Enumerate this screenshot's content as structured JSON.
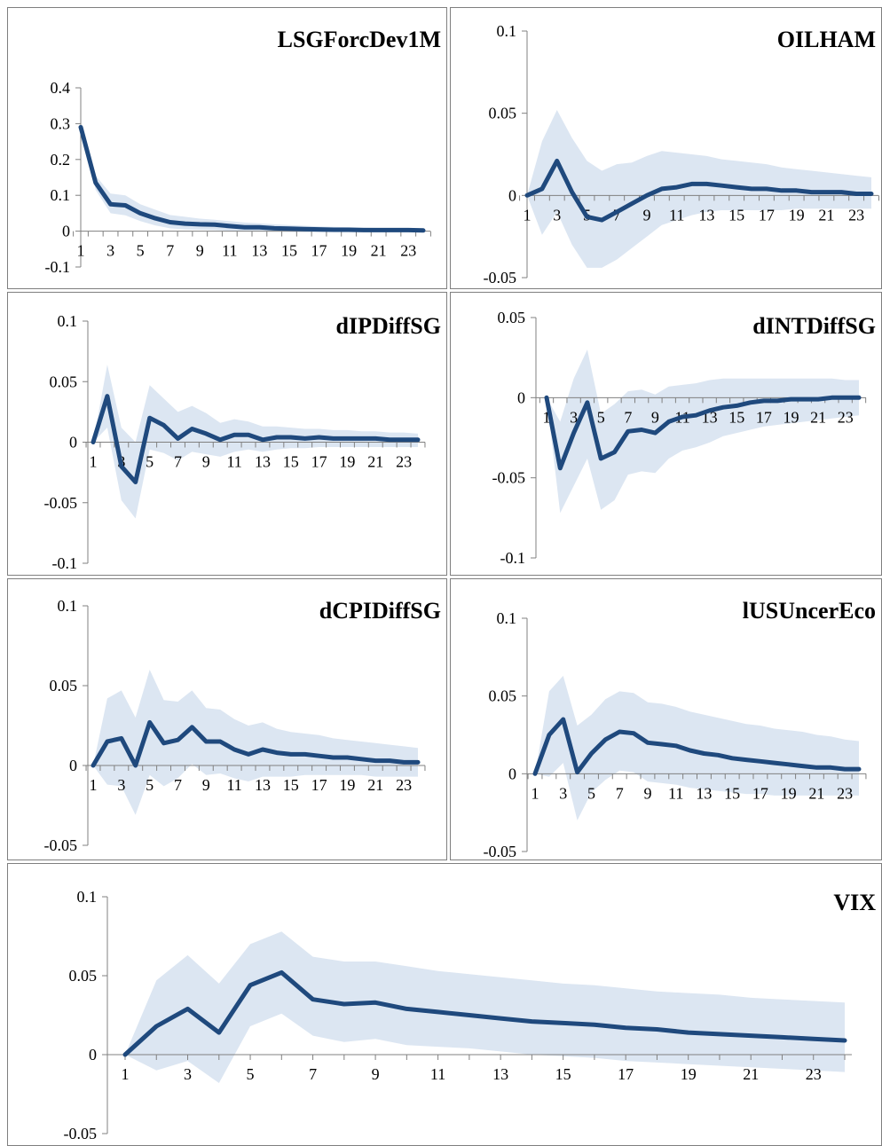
{
  "colors": {
    "line": "#1f497d",
    "band": "#dce6f2",
    "axis": "#808080",
    "border": "#7f7f7f"
  },
  "chart_data": [
    {
      "type": "line",
      "title": "LSGForcDev1M",
      "x": [
        1,
        2,
        3,
        4,
        5,
        6,
        7,
        8,
        9,
        10,
        11,
        12,
        13,
        14,
        15,
        16,
        17,
        18,
        19,
        20,
        21,
        22,
        23,
        24
      ],
      "x_tick_labels": [
        "1",
        "3",
        "5",
        "7",
        "9",
        "11",
        "13",
        "15",
        "17",
        "19",
        "21",
        "23"
      ],
      "ylim": [
        -0.1,
        0.4
      ],
      "y_ticks": [
        -0.1,
        0,
        0.1,
        0.2,
        0.3,
        0.4
      ],
      "y_tick_labels": [
        "-0.1",
        "0",
        "0.1",
        "0.2",
        "0.3",
        "0.4"
      ],
      "series": [
        {
          "role": "response",
          "values": [
            0.29,
            0.135,
            0.075,
            0.072,
            0.05,
            0.036,
            0.025,
            0.021,
            0.019,
            0.018,
            0.014,
            0.011,
            0.011,
            0.008,
            0.007,
            0.006,
            0.005,
            0.004,
            0.004,
            0.003,
            0.003,
            0.003,
            0.003,
            0.002
          ]
        },
        {
          "role": "upper",
          "values": [
            0.29,
            0.155,
            0.105,
            0.1,
            0.075,
            0.06,
            0.045,
            0.04,
            0.035,
            0.032,
            0.028,
            0.024,
            0.022,
            0.019,
            0.017,
            0.015,
            0.013,
            0.012,
            0.011,
            0.01,
            0.009,
            0.008,
            0.008,
            0.007
          ]
        },
        {
          "role": "lower",
          "values": [
            0.29,
            0.115,
            0.05,
            0.044,
            0.028,
            0.016,
            0.008,
            0.005,
            0.004,
            0.003,
            0.001,
            0.0,
            -0.001,
            -0.002,
            -0.002,
            -0.003,
            -0.003,
            -0.003,
            -0.003,
            -0.003,
            -0.003,
            -0.003,
            -0.003,
            -0.003
          ]
        }
      ]
    },
    {
      "type": "line",
      "title": "OILHAM",
      "x": [
        1,
        2,
        3,
        4,
        5,
        6,
        7,
        8,
        9,
        10,
        11,
        12,
        13,
        14,
        15,
        16,
        17,
        18,
        19,
        20,
        21,
        22,
        23,
        24
      ],
      "x_tick_labels": [
        "1",
        "3",
        "5",
        "7",
        "9",
        "11",
        "13",
        "15",
        "17",
        "19",
        "21",
        "23"
      ],
      "ylim": [
        -0.05,
        0.1
      ],
      "y_ticks": [
        -0.05,
        0,
        0.05,
        0.1
      ],
      "y_tick_labels": [
        "-0.05",
        "0",
        "0.05",
        "0.1"
      ],
      "series": [
        {
          "role": "response",
          "values": [
            0.0,
            0.004,
            0.021,
            0.002,
            -0.013,
            -0.015,
            -0.01,
            -0.005,
            0.0,
            0.004,
            0.005,
            0.007,
            0.007,
            0.006,
            0.005,
            0.004,
            0.004,
            0.003,
            0.003,
            0.002,
            0.002,
            0.002,
            0.001,
            0.001
          ]
        },
        {
          "role": "upper",
          "values": [
            0.0,
            0.033,
            0.052,
            0.035,
            0.021,
            0.015,
            0.019,
            0.02,
            0.024,
            0.027,
            0.026,
            0.025,
            0.024,
            0.022,
            0.021,
            0.02,
            0.019,
            0.017,
            0.016,
            0.015,
            0.014,
            0.013,
            0.012,
            0.011
          ]
        },
        {
          "role": "lower",
          "values": [
            0.0,
            -0.024,
            -0.01,
            -0.03,
            -0.044,
            -0.044,
            -0.039,
            -0.032,
            -0.025,
            -0.018,
            -0.015,
            -0.012,
            -0.01,
            -0.009,
            -0.009,
            -0.009,
            -0.009,
            -0.009,
            -0.008,
            -0.008,
            -0.008,
            -0.008,
            -0.008,
            -0.008
          ]
        }
      ]
    },
    {
      "type": "line",
      "title": "dIPDiffSG",
      "x": [
        1,
        2,
        3,
        4,
        5,
        6,
        7,
        8,
        9,
        10,
        11,
        12,
        13,
        14,
        15,
        16,
        17,
        18,
        19,
        20,
        21,
        22,
        23,
        24
      ],
      "x_tick_labels": [
        "1",
        "3",
        "5",
        "7",
        "9",
        "11",
        "13",
        "15",
        "17",
        "19",
        "21",
        "23"
      ],
      "ylim": [
        -0.1,
        0.1
      ],
      "y_ticks": [
        -0.1,
        -0.05,
        0,
        0.05,
        0.1
      ],
      "y_tick_labels": [
        "-0.1",
        "-0.05",
        "0",
        "0.05",
        "0.1"
      ],
      "series": [
        {
          "role": "response",
          "values": [
            0.0,
            0.038,
            -0.02,
            -0.033,
            0.02,
            0.014,
            0.003,
            0.011,
            0.007,
            0.002,
            0.006,
            0.006,
            0.002,
            0.004,
            0.004,
            0.003,
            0.004,
            0.003,
            0.003,
            0.003,
            0.003,
            0.002,
            0.002,
            0.002
          ]
        },
        {
          "role": "upper",
          "values": [
            0.0,
            0.064,
            0.012,
            0.0,
            0.047,
            0.036,
            0.025,
            0.03,
            0.024,
            0.016,
            0.019,
            0.017,
            0.013,
            0.013,
            0.012,
            0.011,
            0.011,
            0.01,
            0.01,
            0.009,
            0.009,
            0.008,
            0.008,
            0.007
          ]
        },
        {
          "role": "lower",
          "values": [
            0.0,
            0.012,
            -0.048,
            -0.063,
            -0.006,
            -0.009,
            -0.015,
            -0.008,
            -0.01,
            -0.012,
            -0.008,
            -0.006,
            -0.008,
            -0.006,
            -0.005,
            -0.005,
            -0.004,
            -0.004,
            -0.004,
            -0.004,
            -0.004,
            -0.004,
            -0.004,
            -0.004
          ]
        }
      ]
    },
    {
      "type": "line",
      "title": "dINTDiffSG",
      "x": [
        1,
        2,
        3,
        4,
        5,
        6,
        7,
        8,
        9,
        10,
        11,
        12,
        13,
        14,
        15,
        16,
        17,
        18,
        19,
        20,
        21,
        22,
        23,
        24
      ],
      "x_tick_labels": [
        "1",
        "3",
        "5",
        "7",
        "9",
        "11",
        "13",
        "15",
        "17",
        "19",
        "21",
        "23"
      ],
      "ylim": [
        -0.1,
        0.05
      ],
      "y_ticks": [
        -0.1,
        -0.05,
        0,
        0.05
      ],
      "y_tick_labels": [
        "-0.1",
        "-0.05",
        "0",
        "0.05"
      ],
      "series": [
        {
          "role": "response",
          "values": [
            0.0,
            -0.044,
            -0.022,
            -0.003,
            -0.038,
            -0.034,
            -0.021,
            -0.02,
            -0.022,
            -0.015,
            -0.012,
            -0.011,
            -0.008,
            -0.006,
            -0.005,
            -0.003,
            -0.002,
            -0.002,
            -0.001,
            -0.001,
            -0.001,
            0.0,
            0.0,
            0.0
          ]
        },
        {
          "role": "upper",
          "values": [
            0.0,
            -0.015,
            0.012,
            0.03,
            -0.01,
            -0.004,
            0.004,
            0.005,
            0.002,
            0.007,
            0.008,
            0.009,
            0.011,
            0.012,
            0.012,
            0.012,
            0.012,
            0.012,
            0.012,
            0.012,
            0.012,
            0.012,
            0.011,
            0.011
          ]
        },
        {
          "role": "lower",
          "values": [
            0.0,
            -0.072,
            -0.055,
            -0.038,
            -0.07,
            -0.064,
            -0.048,
            -0.046,
            -0.047,
            -0.038,
            -0.033,
            -0.031,
            -0.028,
            -0.024,
            -0.022,
            -0.02,
            -0.018,
            -0.017,
            -0.016,
            -0.015,
            -0.014,
            -0.013,
            -0.012,
            -0.011
          ]
        }
      ]
    },
    {
      "type": "line",
      "title": "dCPIDiffSG",
      "x": [
        1,
        2,
        3,
        4,
        5,
        6,
        7,
        8,
        9,
        10,
        11,
        12,
        13,
        14,
        15,
        16,
        17,
        18,
        19,
        20,
        21,
        22,
        23,
        24
      ],
      "x_tick_labels": [
        "1",
        "3",
        "5",
        "7",
        "9",
        "11",
        "13",
        "15",
        "17",
        "19",
        "21",
        "23"
      ],
      "ylim": [
        -0.05,
        0.1
      ],
      "y_ticks": [
        -0.05,
        0,
        0.05,
        0.1
      ],
      "y_tick_labels": [
        "-0.05",
        "0",
        "0.05",
        "0.1"
      ],
      "series": [
        {
          "role": "response",
          "values": [
            0.0,
            0.015,
            0.017,
            0.0,
            0.027,
            0.014,
            0.016,
            0.024,
            0.015,
            0.015,
            0.01,
            0.007,
            0.01,
            0.008,
            0.007,
            0.007,
            0.006,
            0.005,
            0.005,
            0.004,
            0.003,
            0.003,
            0.002,
            0.002
          ]
        },
        {
          "role": "upper",
          "values": [
            0.0,
            0.042,
            0.047,
            0.03,
            0.06,
            0.041,
            0.04,
            0.047,
            0.036,
            0.035,
            0.029,
            0.025,
            0.027,
            0.023,
            0.021,
            0.02,
            0.019,
            0.017,
            0.016,
            0.015,
            0.014,
            0.013,
            0.012,
            0.011
          ]
        },
        {
          "role": "lower",
          "values": [
            0.0,
            -0.012,
            -0.013,
            -0.031,
            -0.006,
            -0.013,
            -0.008,
            0.001,
            -0.006,
            -0.005,
            -0.008,
            -0.01,
            -0.007,
            -0.007,
            -0.007,
            -0.006,
            -0.006,
            -0.006,
            -0.006,
            -0.006,
            -0.007,
            -0.007,
            -0.007,
            -0.007
          ]
        }
      ]
    },
    {
      "type": "line",
      "title": "lUSUncerEco",
      "x": [
        1,
        2,
        3,
        4,
        5,
        6,
        7,
        8,
        9,
        10,
        11,
        12,
        13,
        14,
        15,
        16,
        17,
        18,
        19,
        20,
        21,
        22,
        23,
        24
      ],
      "x_tick_labels": [
        "1",
        "3",
        "5",
        "7",
        "9",
        "11",
        "13",
        "15",
        "17",
        "19",
        "21",
        "23"
      ],
      "ylim": [
        -0.05,
        0.1
      ],
      "y_ticks": [
        -0.05,
        0,
        0.05,
        0.1
      ],
      "y_tick_labels": [
        "-0.05",
        "0",
        "0.05",
        "0.1"
      ],
      "series": [
        {
          "role": "response",
          "values": [
            0.0,
            0.025,
            0.035,
            0.001,
            0.013,
            0.022,
            0.027,
            0.026,
            0.02,
            0.019,
            0.018,
            0.015,
            0.013,
            0.012,
            0.01,
            0.009,
            0.008,
            0.007,
            0.006,
            0.005,
            0.004,
            0.004,
            0.003,
            0.003
          ]
        },
        {
          "role": "upper",
          "values": [
            0.0,
            0.053,
            0.063,
            0.031,
            0.038,
            0.048,
            0.053,
            0.052,
            0.046,
            0.045,
            0.043,
            0.04,
            0.038,
            0.036,
            0.034,
            0.032,
            0.031,
            0.029,
            0.028,
            0.027,
            0.025,
            0.024,
            0.022,
            0.021
          ]
        },
        {
          "role": "lower",
          "values": [
            0.0,
            -0.002,
            0.007,
            -0.03,
            -0.012,
            -0.004,
            0.002,
            0.001,
            -0.005,
            -0.006,
            -0.007,
            -0.009,
            -0.01,
            -0.011,
            -0.012,
            -0.013,
            -0.013,
            -0.014,
            -0.014,
            -0.014,
            -0.014,
            -0.014,
            -0.014,
            -0.014
          ]
        }
      ]
    },
    {
      "type": "line",
      "title": "VIX",
      "x": [
        1,
        2,
        3,
        4,
        5,
        6,
        7,
        8,
        9,
        10,
        11,
        12,
        13,
        14,
        15,
        16,
        17,
        18,
        19,
        20,
        21,
        22,
        23,
        24
      ],
      "x_tick_labels": [
        "1",
        "3",
        "5",
        "7",
        "9",
        "11",
        "13",
        "15",
        "17",
        "19",
        "21",
        "23"
      ],
      "ylim": [
        -0.05,
        0.1
      ],
      "y_ticks": [
        -0.05,
        0,
        0.05,
        0.1
      ],
      "y_tick_labels": [
        "-0.05",
        "0",
        "0.05",
        "0.1"
      ],
      "series": [
        {
          "role": "response",
          "values": [
            0.0,
            0.018,
            0.029,
            0.014,
            0.044,
            0.052,
            0.035,
            0.032,
            0.033,
            0.029,
            0.027,
            0.025,
            0.023,
            0.021,
            0.02,
            0.019,
            0.017,
            0.016,
            0.014,
            0.013,
            0.012,
            0.011,
            0.01,
            0.009
          ]
        },
        {
          "role": "upper",
          "values": [
            0.0,
            0.047,
            0.063,
            0.045,
            0.07,
            0.078,
            0.062,
            0.059,
            0.059,
            0.056,
            0.053,
            0.051,
            0.049,
            0.047,
            0.045,
            0.044,
            0.042,
            0.04,
            0.039,
            0.038,
            0.036,
            0.035,
            0.034,
            0.033
          ]
        },
        {
          "role": "lower",
          "values": [
            0.0,
            -0.01,
            -0.004,
            -0.018,
            0.018,
            0.026,
            0.012,
            0.008,
            0.01,
            0.006,
            0.005,
            0.004,
            0.002,
            0.0,
            -0.001,
            -0.002,
            -0.004,
            -0.005,
            -0.006,
            -0.007,
            -0.008,
            -0.009,
            -0.01,
            -0.011
          ]
        }
      ]
    }
  ]
}
